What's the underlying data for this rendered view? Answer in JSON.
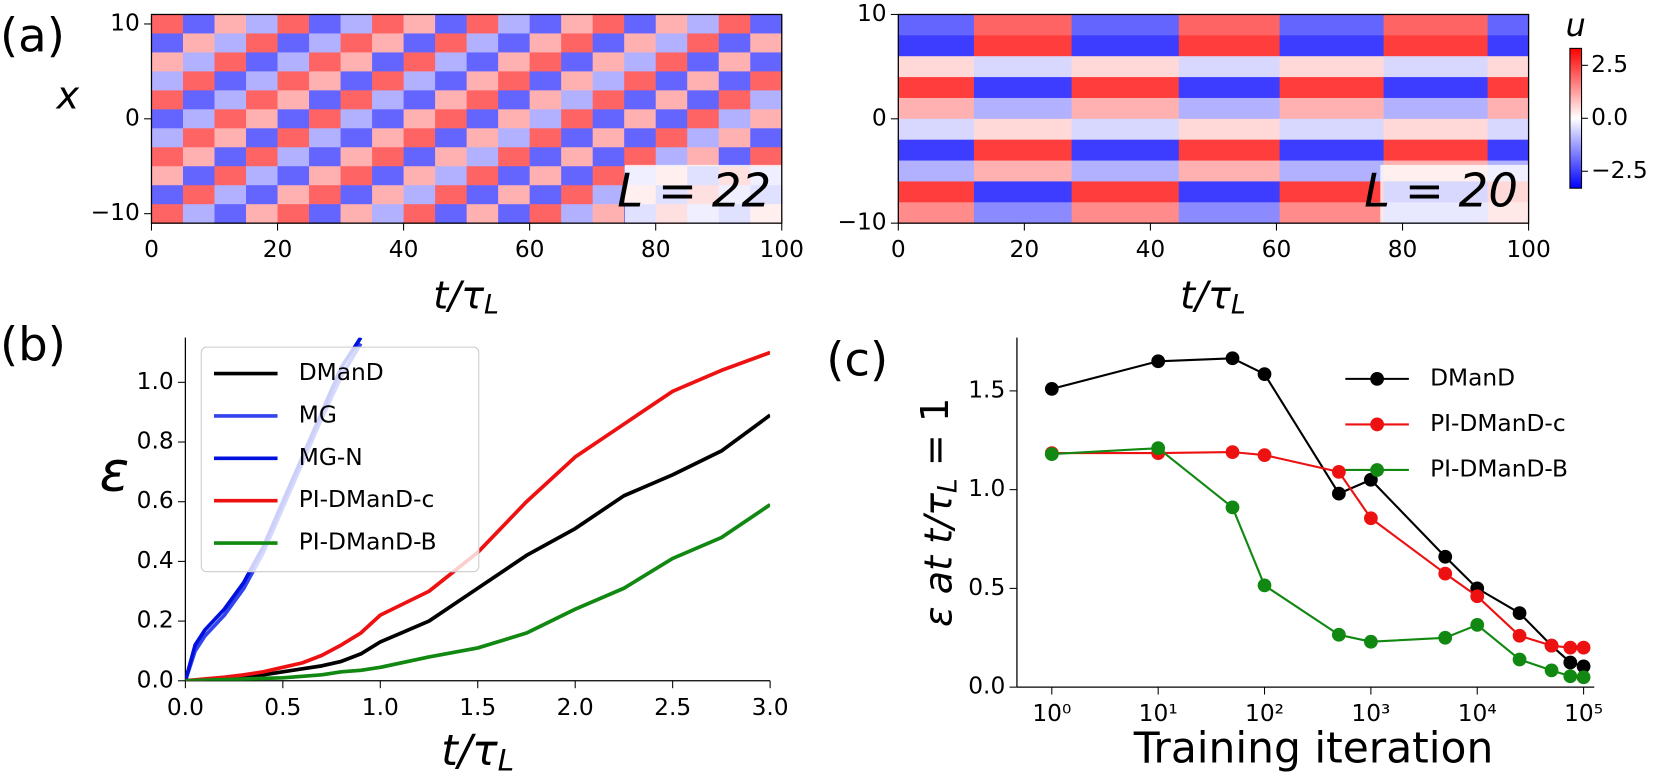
{
  "chart_data": [
    {
      "type": "heatmap",
      "panel_label": "(a)",
      "annotation": "L = 22",
      "xlabel": {
        "main": "t/τ",
        "sub": "L"
      },
      "ylabel": "x",
      "xlim": [
        0,
        100
      ],
      "ylim": [
        -11,
        11
      ],
      "xticks": [
        0,
        20,
        40,
        60,
        80,
        100
      ],
      "yticks": [
        {
          "value": -10,
          "label": "−10"
        },
        0,
        10
      ],
      "clim": [
        -3.3,
        3.3
      ],
      "xbins": [
        0,
        5,
        10,
        15,
        20,
        25,
        30,
        35,
        40,
        45,
        50,
        55,
        60,
        65,
        70,
        75,
        80,
        85,
        90,
        95,
        100
      ],
      "ybins": [
        11,
        9,
        7,
        5,
        3,
        1,
        -1,
        -3,
        -5,
        -7,
        -9,
        -11
      ],
      "z": [
        [
          2,
          -2,
          1,
          -1,
          2,
          -2,
          -1,
          2,
          1,
          -2,
          2,
          -1,
          -2,
          1,
          2,
          -2,
          1,
          -1,
          2,
          -2
        ],
        [
          -2,
          1,
          -1,
          2,
          -2,
          -1,
          2,
          1,
          -2,
          2,
          -1,
          -2,
          1,
          2,
          -2,
          1,
          -1,
          2,
          -2,
          1
        ],
        [
          1,
          -1,
          2,
          -2,
          -1,
          2,
          1,
          -2,
          2,
          -1,
          -2,
          1,
          2,
          -2,
          1,
          -1,
          2,
          -2,
          1,
          -2
        ],
        [
          -1,
          2,
          -2,
          -1,
          2,
          1,
          -2,
          2,
          -1,
          -2,
          1,
          2,
          -2,
          1,
          -1,
          2,
          -2,
          1,
          -2,
          2
        ],
        [
          2,
          -2,
          -1,
          2,
          1,
          -2,
          2,
          -1,
          -2,
          1,
          2,
          -2,
          1,
          -1,
          2,
          -2,
          1,
          -2,
          2,
          -1
        ],
        [
          -2,
          -1,
          2,
          1,
          -2,
          2,
          -1,
          -2,
          1,
          2,
          -2,
          1,
          -1,
          2,
          -2,
          1,
          -2,
          2,
          -1,
          1
        ],
        [
          -1,
          2,
          1,
          -2,
          2,
          -1,
          -2,
          1,
          2,
          -2,
          1,
          -1,
          2,
          -2,
          1,
          -2,
          2,
          -1,
          1,
          -2
        ],
        [
          2,
          1,
          -2,
          2,
          -1,
          -2,
          1,
          2,
          -2,
          1,
          -1,
          2,
          -2,
          1,
          -2,
          2,
          -1,
          1,
          -2,
          2
        ],
        [
          1,
          -2,
          2,
          -1,
          -2,
          1,
          2,
          -2,
          1,
          -1,
          2,
          -2,
          1,
          -2,
          2,
          -1,
          1,
          -2,
          2,
          -1
        ],
        [
          -2,
          2,
          -1,
          -2,
          1,
          2,
          -2,
          1,
          -1,
          2,
          -2,
          1,
          -2,
          2,
          -1,
          1,
          -2,
          2,
          -1,
          -2
        ],
        [
          2,
          -1,
          -2,
          1,
          2,
          -2,
          1,
          -1,
          2,
          -2,
          1,
          -2,
          2,
          -1,
          1,
          -2,
          2,
          -1,
          -2,
          1
        ]
      ]
    },
    {
      "type": "heatmap",
      "annotation": "L = 20",
      "xlabel": {
        "main": "t/τ",
        "sub": "L"
      },
      "xlim": [
        0,
        100
      ],
      "ylim": [
        -10,
        10
      ],
      "xticks": [
        0,
        20,
        40,
        60,
        80,
        100
      ],
      "yticks": [
        {
          "value": -10,
          "label": "−10"
        },
        0,
        10
      ],
      "clim": [
        -3.3,
        3.3
      ],
      "colorbar": {
        "label": "u",
        "ticks": [
          {
            "value": -2.5,
            "label": "−2.5"
          },
          {
            "value": 0,
            "label": "0.0"
          },
          2.5
        ]
      },
      "xbins": [
        0,
        12,
        27.5,
        44.5,
        60.5,
        77,
        93.5,
        100
      ],
      "ybins": [
        10,
        8,
        6,
        4,
        2,
        0,
        -2,
        -4,
        -6,
        -8,
        -10
      ],
      "z": [
        [
          -2,
          2,
          -2,
          2,
          -2,
          2,
          -2
        ],
        [
          -2.5,
          2.5,
          -2.5,
          2.5,
          -2.5,
          2.5,
          -2.5
        ],
        [
          0.5,
          -0.5,
          0.5,
          -0.5,
          0.5,
          -0.5,
          0.5
        ],
        [
          2.5,
          -2.5,
          2.5,
          -2.5,
          2.5,
          -2.5,
          2.5
        ],
        [
          1,
          -1,
          1,
          -1,
          1,
          -1,
          1
        ],
        [
          -0.5,
          0.5,
          -0.5,
          0.5,
          -0.5,
          0.5,
          -0.5
        ],
        [
          -2.5,
          2.5,
          -2.5,
          2.5,
          -2.5,
          2.5,
          -2.5
        ],
        [
          -1,
          1,
          -1,
          1,
          -1,
          1,
          -1
        ],
        [
          2.5,
          -2.5,
          2.5,
          -2.5,
          2.5,
          -2.5,
          2.5
        ],
        [
          1.5,
          -1.5,
          1.5,
          -1.5,
          1.5,
          -1.5,
          1.5
        ]
      ]
    },
    {
      "type": "line",
      "panel_label": "(b)",
      "xlabel": {
        "main": "t/τ",
        "sub": "L"
      },
      "ylabel": "ε",
      "xlim": [
        0,
        3
      ],
      "ylim": [
        0,
        1.15
      ],
      "xticks": [
        {
          "value": 0,
          "label": "0.0"
        },
        0.5,
        {
          "value": 1,
          "label": "1.0"
        },
        1.5,
        {
          "value": 2,
          "label": "2.0"
        },
        2.5,
        {
          "value": 3,
          "label": "3.0"
        }
      ],
      "yticks": [
        {
          "value": 0,
          "label": "0.0"
        },
        0.2,
        0.4,
        0.6,
        0.8,
        {
          "value": 1,
          "label": "1.0"
        }
      ],
      "legend": "upper left",
      "x": [
        0,
        0.05,
        0.1,
        0.2,
        0.3,
        0.4,
        0.5,
        0.6,
        0.7,
        0.8,
        0.9,
        1.0,
        1.25,
        1.5,
        1.75,
        2.0,
        2.25,
        2.5,
        2.75,
        3.0
      ],
      "series": [
        {
          "name": "DManD",
          "color": "#000000",
          "values": [
            0,
            0.002,
            0.005,
            0.01,
            0.015,
            0.02,
            0.03,
            0.04,
            0.05,
            0.065,
            0.09,
            0.13,
            0.2,
            0.31,
            0.42,
            0.51,
            0.62,
            0.69,
            0.77,
            0.89
          ]
        },
        {
          "name": "MG",
          "color": "#3344ee",
          "values": [
            0,
            0.1,
            0.15,
            0.22,
            0.31,
            0.43,
            0.58,
            0.73,
            0.88,
            1.02,
            1.13,
            null,
            null,
            null,
            null,
            null,
            null,
            null,
            null,
            null
          ]
        },
        {
          "name": "MG-N",
          "color": "#0011dd",
          "values": [
            0,
            0.12,
            0.17,
            0.24,
            0.33,
            0.45,
            0.6,
            0.75,
            0.9,
            1.05,
            1.15,
            null,
            null,
            null,
            null,
            null,
            null,
            null,
            null,
            null
          ]
        },
        {
          "name": "PI-DManD-c",
          "color": "#ee1111",
          "values": [
            0,
            0.003,
            0.006,
            0.012,
            0.02,
            0.03,
            0.045,
            0.06,
            0.085,
            0.12,
            0.16,
            0.22,
            0.3,
            0.43,
            0.6,
            0.75,
            0.86,
            0.97,
            1.04,
            1.1
          ]
        },
        {
          "name": "PI-DManD-B",
          "color": "#118811",
          "values": [
            0,
            0.001,
            0.002,
            0.004,
            0.006,
            0.008,
            0.01,
            0.015,
            0.02,
            0.03,
            0.035,
            0.045,
            0.08,
            0.11,
            0.16,
            0.24,
            0.31,
            0.41,
            0.48,
            0.59
          ]
        }
      ]
    },
    {
      "type": "line",
      "panel_label": "(c)",
      "xscale": "log",
      "markers": true,
      "xlabel": {
        "main": "Training iteration"
      },
      "ylabel": {
        "main": "ε at t/τ",
        "sub": "L",
        "tail": " = 1"
      },
      "xlim": [
        0.47,
        126000
      ],
      "ylim": [
        0,
        1.77
      ],
      "xticks": [
        {
          "value": 1,
          "label": "10⁰"
        },
        {
          "value": 10,
          "label": "10¹"
        },
        {
          "value": 100,
          "label": "10²"
        },
        {
          "value": 1000,
          "label": "10³"
        },
        {
          "value": 10000,
          "label": "10⁴"
        },
        {
          "value": 100000,
          "label": "10⁵"
        }
      ],
      "yticks": [
        {
          "value": 0,
          "label": "0.0"
        },
        0.5,
        {
          "value": 1,
          "label": "1.0"
        },
        1.5
      ],
      "legend": "upper right",
      "x": [
        1,
        10,
        50,
        100,
        500,
        1000,
        5000,
        10000,
        25000,
        50000,
        75000,
        100000
      ],
      "series": [
        {
          "name": "DManD",
          "color": "#000000",
          "values": [
            1.51,
            1.65,
            1.665,
            1.585,
            0.98,
            1.05,
            0.66,
            0.5,
            0.375,
            0.21,
            0.125,
            0.105
          ]
        },
        {
          "name": "PI-DManD-c",
          "color": "#ee1111",
          "values": [
            1.185,
            1.185,
            1.19,
            1.175,
            1.09,
            0.855,
            0.575,
            0.46,
            0.26,
            0.21,
            0.2,
            0.2
          ]
        },
        {
          "name": "PI-DManD-B",
          "color": "#118811",
          "values": [
            1.18,
            1.21,
            0.91,
            0.515,
            0.265,
            0.23,
            0.25,
            0.315,
            0.14,
            0.085,
            0.055,
            0.05
          ]
        }
      ]
    }
  ]
}
